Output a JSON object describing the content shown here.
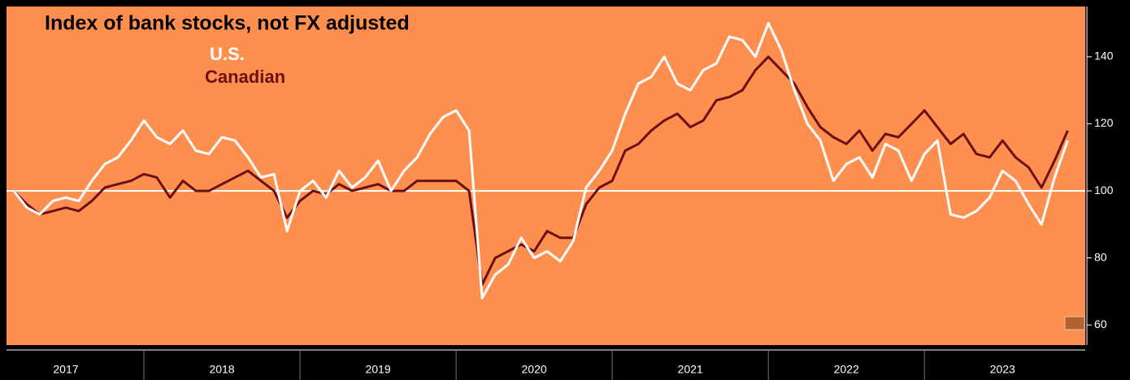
{
  "chart_data": {
    "type": "line",
    "title": "Index of bank stocks, not FX adjusted",
    "x": [
      2017.167,
      2017.25,
      2017.333,
      2017.417,
      2017.5,
      2017.583,
      2017.667,
      2017.75,
      2017.833,
      2017.917,
      2018.0,
      2018.083,
      2018.167,
      2018.25,
      2018.333,
      2018.417,
      2018.5,
      2018.583,
      2018.667,
      2018.75,
      2018.833,
      2018.917,
      2019.0,
      2019.083,
      2019.167,
      2019.25,
      2019.333,
      2019.417,
      2019.5,
      2019.583,
      2019.667,
      2019.75,
      2019.833,
      2019.917,
      2020.0,
      2020.083,
      2020.167,
      2020.25,
      2020.333,
      2020.417,
      2020.5,
      2020.583,
      2020.667,
      2020.75,
      2020.833,
      2020.917,
      2021.0,
      2021.083,
      2021.167,
      2021.25,
      2021.333,
      2021.417,
      2021.5,
      2021.583,
      2021.667,
      2021.75,
      2021.833,
      2021.917,
      2022.0,
      2022.083,
      2022.167,
      2022.25,
      2022.333,
      2022.417,
      2022.5,
      2022.583,
      2022.667,
      2022.75,
      2022.833,
      2022.917,
      2023.0,
      2023.083,
      2023.167,
      2023.25,
      2023.333,
      2023.417,
      2023.5,
      2023.583,
      2023.667,
      2023.75,
      2023.833,
      2023.917
    ],
    "series": [
      {
        "name": "U.S.",
        "color": "#ffffff",
        "values": [
          100,
          95,
          93,
          97,
          98,
          97,
          103,
          108,
          110,
          115,
          121,
          116,
          114,
          118,
          112,
          111,
          116,
          115,
          110,
          104,
          105,
          88,
          100,
          103,
          98,
          106,
          101,
          104,
          109,
          100,
          106,
          110,
          117,
          122,
          124,
          118,
          68,
          75,
          78,
          86,
          80,
          82,
          79,
          85,
          101,
          106,
          112,
          123,
          132,
          134,
          140,
          132,
          130,
          136,
          138,
          146,
          145,
          140,
          150,
          142,
          130,
          120,
          115,
          103,
          108,
          110,
          104,
          114,
          112,
          103,
          111,
          115,
          93,
          92,
          94,
          98,
          106,
          103,
          96,
          90,
          104,
          115
        ]
      },
      {
        "name": "Canadian",
        "color": "#6b0f16",
        "values": [
          100,
          96,
          93,
          94,
          95,
          94,
          97,
          101,
          102,
          103,
          105,
          104,
          98,
          103,
          100,
          100,
          102,
          104,
          106,
          103,
          100,
          92,
          97,
          100,
          99,
          102,
          100,
          101,
          102,
          100,
          100,
          103,
          103,
          103,
          103,
          100,
          72,
          80,
          82,
          84,
          82,
          88,
          86,
          86,
          96,
          101,
          103,
          112,
          114,
          118,
          121,
          123,
          119,
          121,
          127,
          128,
          130,
          136,
          140,
          136,
          132,
          125,
          119,
          116,
          114,
          118,
          112,
          117,
          116,
          120,
          124,
          119,
          114,
          117,
          111,
          110,
          115,
          110,
          107,
          101,
          109,
          118
        ]
      }
    ],
    "xlim": [
      2017.12,
      2024.03
    ],
    "xticks": [
      {
        "value": 2017.5,
        "label": "2017"
      },
      {
        "value": 2018.5,
        "label": "2018"
      },
      {
        "value": 2019.5,
        "label": "2019"
      },
      {
        "value": 2020.5,
        "label": "2020"
      },
      {
        "value": 2021.5,
        "label": "2021"
      },
      {
        "value": 2022.5,
        "label": "2022"
      },
      {
        "value": 2023.5,
        "label": "2023"
      }
    ],
    "ylim": [
      54,
      155
    ],
    "yticks": [
      60,
      80,
      100,
      120,
      140
    ],
    "reference_line": 100,
    "background": "#ff8f4f"
  }
}
